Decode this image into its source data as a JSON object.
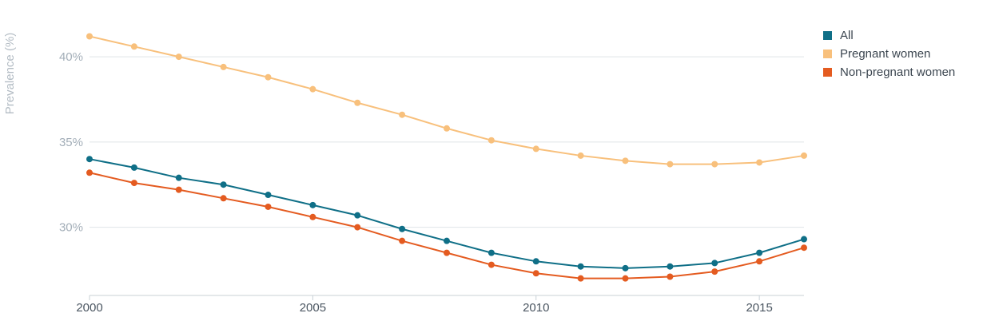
{
  "chart_data": {
    "type": "line",
    "title": "",
    "xlabel": "",
    "ylabel": "Prevalence (%)",
    "x": [
      2000,
      2001,
      2002,
      2003,
      2004,
      2005,
      2006,
      2007,
      2008,
      2009,
      2010,
      2011,
      2012,
      2013,
      2014,
      2015,
      2016
    ],
    "xlim": [
      2000,
      2016
    ],
    "ylim": [
      26,
      42.3
    ],
    "x_ticks": [
      2000,
      2005,
      2010,
      2015
    ],
    "x_tick_labels": [
      "2000",
      "2005",
      "2010",
      "2015"
    ],
    "y_ticks": [
      30,
      35,
      40
    ],
    "y_tick_labels": [
      "30%",
      "35%",
      "40%"
    ],
    "grid": "horizontal",
    "legend_position": "top-right",
    "series": [
      {
        "name": "All",
        "color": "#0f6f87",
        "values": [
          34.0,
          33.5,
          32.9,
          32.5,
          31.9,
          31.3,
          30.7,
          29.9,
          29.2,
          28.5,
          28.0,
          27.7,
          27.6,
          27.7,
          27.9,
          28.5,
          29.3
        ]
      },
      {
        "name": "Pregnant women",
        "color": "#f8c07c",
        "values": [
          41.2,
          40.6,
          40.0,
          39.4,
          38.8,
          38.1,
          37.3,
          36.6,
          35.8,
          35.1,
          34.6,
          34.2,
          33.9,
          33.7,
          33.7,
          33.8,
          34.2
        ]
      },
      {
        "name": "Non-pregnant women",
        "color": "#e45b20",
        "values": [
          33.2,
          32.6,
          32.2,
          31.7,
          31.2,
          30.6,
          30.0,
          29.2,
          28.5,
          27.8,
          27.3,
          27.0,
          27.0,
          27.1,
          27.4,
          28.0,
          28.8
        ]
      }
    ]
  }
}
